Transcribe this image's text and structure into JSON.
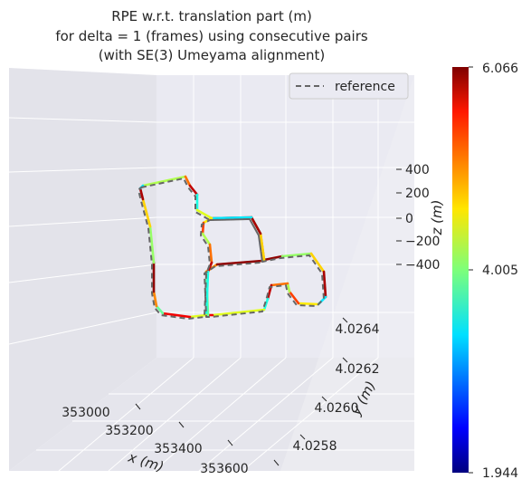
{
  "chart_data": {
    "type": "line",
    "projection": "3d",
    "title": [
      "RPE w.r.t. translation part (m)",
      "for delta = 1 (frames) using consecutive pairs",
      "(with SE(3) Umeyama alignment)"
    ],
    "xlabel": "x (m)",
    "ylabel": "y (m)",
    "zlabel": "z (m)",
    "x_ticks": [
      "353000",
      "353200",
      "353400",
      "353600"
    ],
    "y_ticks": [
      "4.0258",
      "4.0260",
      "4.0262",
      "4.0264"
    ],
    "z_ticks": [
      "400",
      "200",
      "0",
      "−200",
      "−400"
    ],
    "legend": {
      "entries": [
        "reference"
      ],
      "placement": "top-right",
      "style": "dashed-gray"
    },
    "grid": true,
    "colorbar": {
      "colormap": "jet",
      "min": 1.944,
      "max": 6.066,
      "tick_labels": [
        "6.066",
        "4.005",
        "1.944"
      ]
    },
    "series": [
      {
        "name": "reference",
        "style": "dashed",
        "color": "#777777"
      },
      {
        "style": "colormapped",
        "colormap_values": [
          4.2,
          5.1,
          5.8,
          3.6,
          4.4,
          5.6,
          3.9,
          5.0,
          6.0,
          4.1,
          4.7,
          5.9,
          3.4,
          4.6,
          5.3
        ]
      }
    ]
  },
  "colors": {
    "pane_background": "#eaeaf2",
    "grid": "#ffffff",
    "reference_line": "#666666"
  }
}
